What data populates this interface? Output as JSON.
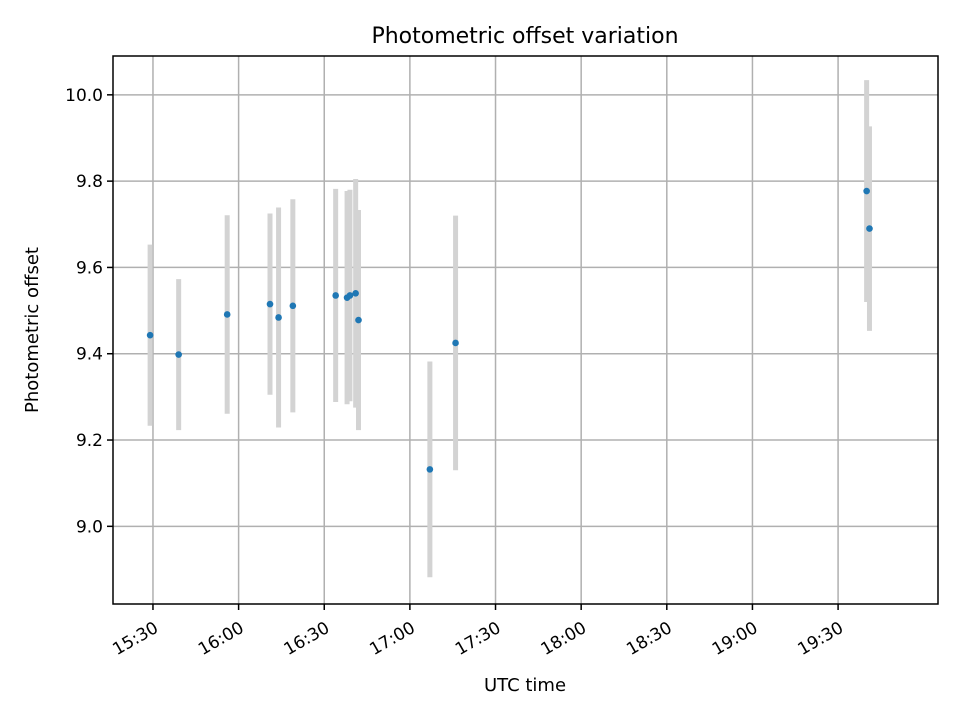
{
  "chart_data": {
    "type": "scatter",
    "title": "Photometric offset variation",
    "xlabel": "UTC time",
    "ylabel": "Photometric offset",
    "xlim": [
      "15:16",
      "20:05"
    ],
    "ylim": [
      8.82,
      10.09
    ],
    "grid": true,
    "x_ticks": [
      "15:30",
      "16:00",
      "16:30",
      "17:00",
      "17:30",
      "18:00",
      "18:30",
      "19:00",
      "19:30"
    ],
    "y_ticks": [
      "9.0",
      "9.2",
      "9.4",
      "9.6",
      "9.8",
      "10.0"
    ],
    "series": [
      {
        "marker_color": "#1f77b4",
        "errorbar_color": "#d3d3d3",
        "points": [
          {
            "x": "15:29",
            "y": 9.443,
            "yerr": 0.21
          },
          {
            "x": "15:39",
            "y": 9.398,
            "yerr": 0.175
          },
          {
            "x": "15:56",
            "y": 9.491,
            "yerr": 0.23
          },
          {
            "x": "16:11",
            "y": 9.515,
            "yerr": 0.21
          },
          {
            "x": "16:14",
            "y": 9.484,
            "yerr": 0.255
          },
          {
            "x": "16:19",
            "y": 9.511,
            "yerr": 0.247
          },
          {
            "x": "16:34",
            "y": 9.535,
            "yerr": 0.247
          },
          {
            "x": "16:38",
            "y": 9.53,
            "yerr": 0.247
          },
          {
            "x": "16:39",
            "y": 9.535,
            "yerr": 0.245
          },
          {
            "x": "16:41",
            "y": 9.54,
            "yerr": 0.265
          },
          {
            "x": "16:42",
            "y": 9.478,
            "yerr": 0.255
          },
          {
            "x": "17:07",
            "y": 9.132,
            "yerr": 0.25
          },
          {
            "x": "17:16",
            "y": 9.425,
            "yerr": 0.295
          },
          {
            "x": "19:40",
            "y": 9.777,
            "yerr": 0.257
          },
          {
            "x": "19:41",
            "y": 9.69,
            "yerr": 0.237
          }
        ]
      }
    ]
  }
}
